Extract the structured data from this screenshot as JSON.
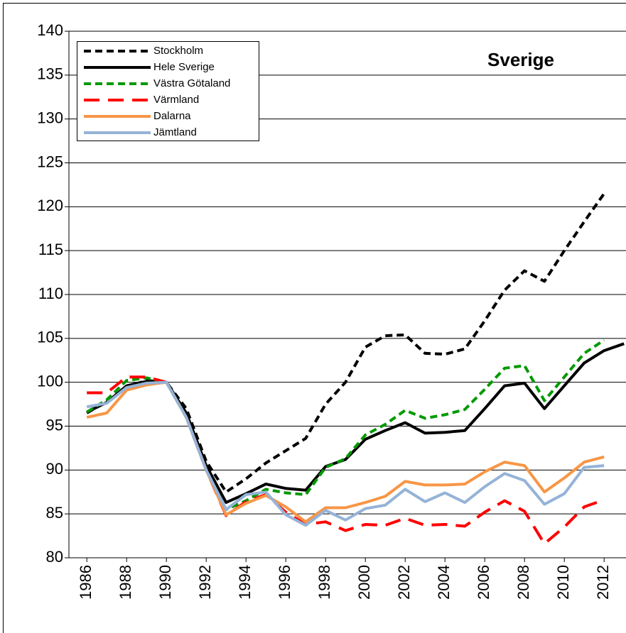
{
  "chart_data": {
    "type": "line",
    "title": "Sverige",
    "x": [
      1986,
      1987,
      1988,
      1989,
      1990,
      1991,
      1992,
      1993,
      1994,
      1995,
      1996,
      1997,
      1998,
      1999,
      2000,
      2001,
      2002,
      2003,
      2004,
      2005,
      2006,
      2007,
      2008,
      2009,
      2010,
      2011,
      2012,
      2013
    ],
    "xlim": [
      1985.1,
      2013.1
    ],
    "xticks": [
      1986,
      1988,
      1990,
      1992,
      1994,
      1996,
      1998,
      2000,
      2002,
      2004,
      2006,
      2008,
      2010,
      2012
    ],
    "ylim": [
      80,
      140
    ],
    "yticks": [
      80,
      85,
      90,
      95,
      100,
      105,
      110,
      115,
      120,
      125,
      130,
      135,
      140
    ],
    "grid": true,
    "legend": "top-left",
    "series": [
      {
        "name": "Stockholm",
        "color": "#000000",
        "dash": "short",
        "values": [
          96.5,
          97.8,
          99.5,
          100.2,
          100,
          97,
          91,
          87.5,
          89,
          90.8,
          92.2,
          93.6,
          97.5,
          100,
          104,
          105.3,
          105.4,
          103.3,
          103.2,
          103.8,
          107,
          110.5,
          112.7,
          111.5,
          115,
          118.3,
          121.5,
          null
        ]
      },
      {
        "name": "Hele Sverige",
        "color": "#000000",
        "dash": "solid",
        "values": [
          96.6,
          97.7,
          99.6,
          100.1,
          100,
          96.5,
          90.5,
          86.3,
          87.3,
          88.4,
          87.9,
          87.7,
          90.4,
          91.2,
          93.5,
          94.5,
          95.4,
          94.2,
          94.3,
          94.5,
          97,
          99.6,
          99.9,
          97,
          99.6,
          102.2,
          103.6,
          104.4
        ]
      },
      {
        "name": "Västra Götaland",
        "color": "#009900",
        "dash": "short",
        "values": [
          96.6,
          98,
          100.2,
          100.5,
          100,
          96,
          90,
          85.5,
          86.5,
          87.8,
          87.4,
          87.2,
          90.3,
          91.3,
          94,
          95.2,
          96.8,
          95.9,
          96.3,
          96.9,
          99.2,
          101.6,
          101.9,
          97.9,
          100.6,
          103.3,
          104.8,
          null
        ]
      },
      {
        "name": "Värmland",
        "color": "#ff0000",
        "dash": "long",
        "values": [
          98.8,
          98.8,
          100.6,
          100.6,
          100,
          96,
          90,
          84.8,
          86.4,
          87.2,
          85.2,
          83.8,
          84.1,
          83.1,
          83.8,
          83.7,
          84.5,
          83.7,
          83.8,
          83.6,
          85.2,
          86.5,
          85.3,
          81.6,
          83.5,
          85.8,
          86.6,
          null
        ]
      },
      {
        "name": "Dalarna",
        "color": "#f79646",
        "dash": "solid",
        "values": [
          96,
          96.5,
          99.1,
          99.7,
          100,
          96,
          90,
          84.9,
          86.2,
          87.1,
          85.8,
          84.1,
          85.7,
          85.7,
          86.3,
          87,
          88.7,
          88.3,
          88.3,
          88.4,
          89.8,
          90.9,
          90.5,
          87.5,
          89.1,
          90.9,
          91.5,
          null
        ]
      },
      {
        "name": "Jämtland",
        "color": "#95b3d7",
        "dash": "solid",
        "values": [
          97.2,
          97.6,
          99.4,
          99.9,
          100,
          96,
          90,
          85.5,
          87.2,
          87.5,
          84.9,
          83.7,
          85.4,
          84.3,
          85.6,
          86,
          87.8,
          86.4,
          87.4,
          86.3,
          88.1,
          89.6,
          88.8,
          86.1,
          87.3,
          90.3,
          90.5,
          null
        ]
      }
    ]
  }
}
